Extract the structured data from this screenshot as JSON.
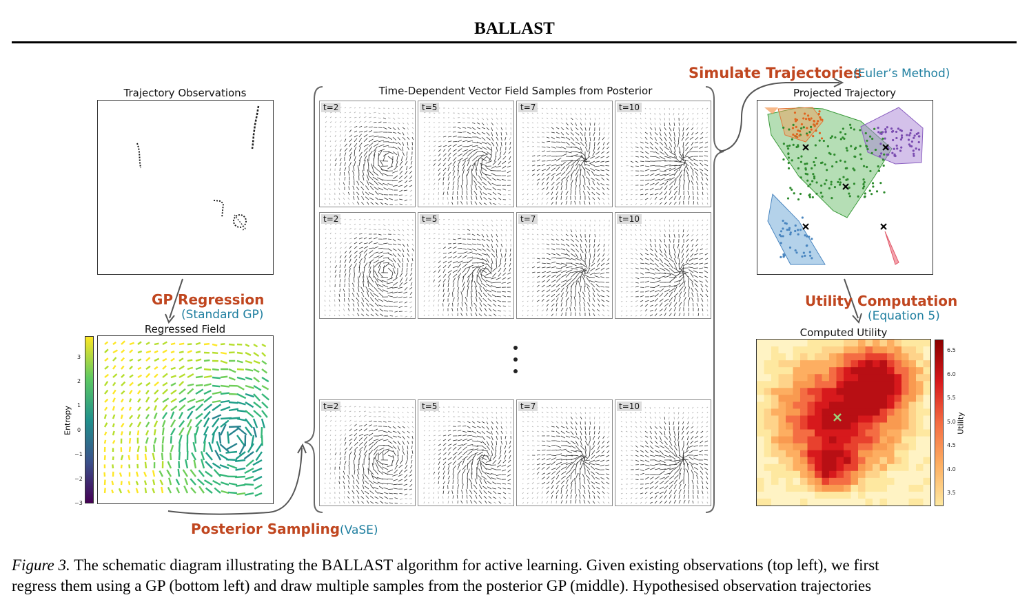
{
  "header": {
    "title": "BALLAST"
  },
  "panels": {
    "observations_title": "Trajectory Observations",
    "regressed_title": "Regressed Field",
    "samples_title": "Time-Dependent Vector Field Samples from Posterior",
    "projected_title": "Projected Trajectory",
    "utility_title": "Computed Utility"
  },
  "steps": {
    "gp_regression": "GP Regression",
    "gp_regression_sub": "(Standard GP)",
    "posterior_sampling": "Posterior Sampling",
    "posterior_sampling_sub": "(VaSE)",
    "simulate": "Simulate Trajectories",
    "simulate_sub": "(Euler’s Method)",
    "utility": "Utility Computation",
    "utility_sub": "(Equation 5)"
  },
  "time_labels": [
    "t=2",
    "t=5",
    "t=7",
    "t=10"
  ],
  "entropy_colorbar": {
    "label": "Entropy",
    "ticks": [
      "3",
      "2",
      "1",
      "0",
      "−1",
      "−2",
      "−3"
    ]
  },
  "utility_colorbar": {
    "label": "Utility",
    "ticks": [
      "6.5",
      "6.0",
      "5.5",
      "5.0",
      "4.5",
      "4.0",
      "3.5"
    ]
  },
  "colors": {
    "accent_orange": "#c0461f",
    "accent_teal": "#1f7fa0"
  },
  "caption": {
    "label": "Figure 3.",
    "line1": "The schematic diagram illustrating the BALLAST algorithm for active learning. Given existing observations (top left), we first",
    "line2": "regress them using a GP (bottom left) and draw multiple samples from the posterior GP (middle). Hypothesised observation trajectories"
  }
}
